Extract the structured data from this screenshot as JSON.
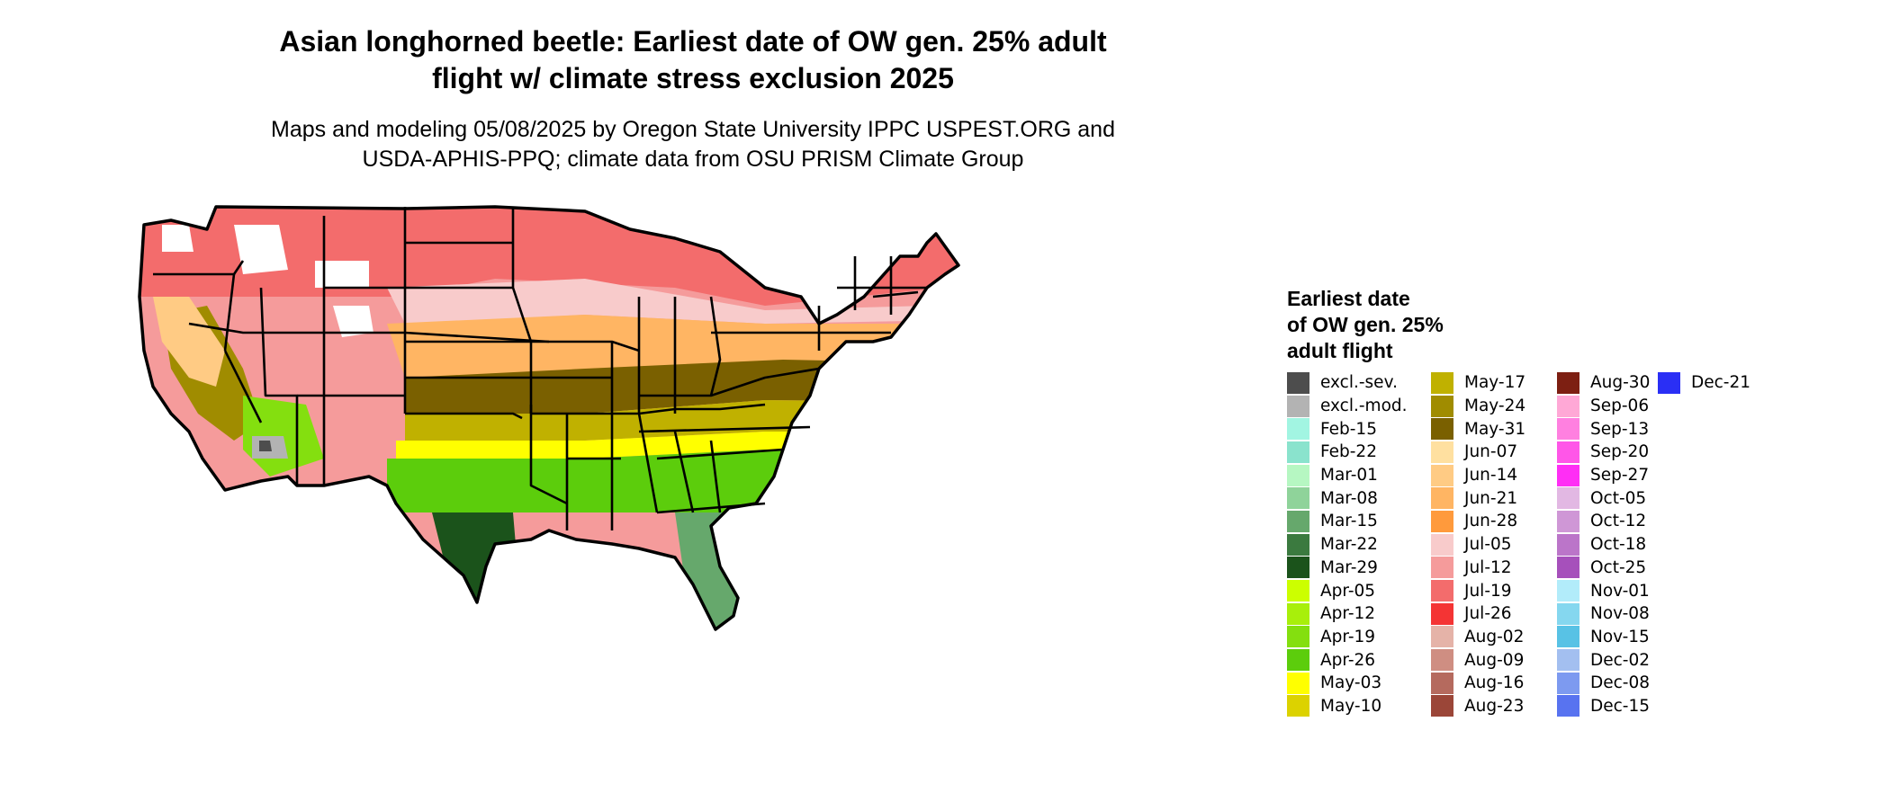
{
  "title": "Asian longhorned beetle: Earliest date of OW gen. 25% adult flight w/ climate stress exclusion 2025",
  "title_lines": [
    "Asian longhorned beetle: Earliest date of OW gen. 25% adult",
    "flight w/ climate stress exclusion 2025"
  ],
  "subtitle_lines": [
    "Maps and modeling 05/08/2025 by Oregon State University IPPC USPEST.ORG and",
    "USDA-APHIS-PPQ; climate data from OSU PRISM Climate Group"
  ],
  "legend": {
    "title_lines": [
      "Earliest date",
      "of OW gen. 25%",
      "adult flight"
    ],
    "columns": [
      [
        {
          "label": "excl.-sev.",
          "color": "#4d4d4d"
        },
        {
          "label": "excl.-mod.",
          "color": "#b3b3b3"
        },
        {
          "label": "Feb-15",
          "color": "#a2f5e2"
        },
        {
          "label": "Feb-22",
          "color": "#8ae3cd"
        },
        {
          "label": "Mar-01",
          "color": "#b6f7c2"
        },
        {
          "label": "Mar-08",
          "color": "#8fd39a"
        },
        {
          "label": "Mar-15",
          "color": "#66a86c"
        },
        {
          "label": "Mar-22",
          "color": "#3b7a3f"
        },
        {
          "label": "Mar-29",
          "color": "#1b531b"
        },
        {
          "label": "Apr-05",
          "color": "#ccff00"
        },
        {
          "label": "Apr-12",
          "color": "#a8ef0b"
        },
        {
          "label": "Apr-19",
          "color": "#84df0f"
        },
        {
          "label": "Apr-26",
          "color": "#5ccd0c"
        },
        {
          "label": "May-03",
          "color": "#ffff00"
        },
        {
          "label": "May-10",
          "color": "#dcd200"
        }
      ],
      [
        {
          "label": "May-17",
          "color": "#c0b100"
        },
        {
          "label": "May-24",
          "color": "#a08c00"
        },
        {
          "label": "May-31",
          "color": "#7a6000"
        },
        {
          "label": "Jun-07",
          "color": "#ffe0a0"
        },
        {
          "label": "Jun-14",
          "color": "#ffcb84"
        },
        {
          "label": "Jun-21",
          "color": "#ffb563"
        },
        {
          "label": "Jun-28",
          "color": "#ff9a3c"
        },
        {
          "label": "Jul-05",
          "color": "#f8cbcb"
        },
        {
          "label": "Jul-12",
          "color": "#f59b9b"
        },
        {
          "label": "Jul-19",
          "color": "#f36c6c"
        },
        {
          "label": "Jul-26",
          "color": "#f43434"
        },
        {
          "label": "Aug-02",
          "color": "#e5b3a8"
        },
        {
          "label": "Aug-09",
          "color": "#cf8e82"
        },
        {
          "label": "Aug-16",
          "color": "#b56a5e"
        },
        {
          "label": "Aug-23",
          "color": "#9b4638"
        }
      ],
      [
        {
          "label": "Aug-30",
          "color": "#7d1f12"
        },
        {
          "label": "Sep-06",
          "color": "#ffa8d6"
        },
        {
          "label": "Sep-13",
          "color": "#ff80e0"
        },
        {
          "label": "Sep-20",
          "color": "#ff56e8"
        },
        {
          "label": "Sep-27",
          "color": "#ff2ef5"
        },
        {
          "label": "Oct-05",
          "color": "#e2b8e3"
        },
        {
          "label": "Oct-12",
          "color": "#cf97d6"
        },
        {
          "label": "Oct-18",
          "color": "#bb75c9"
        },
        {
          "label": "Oct-25",
          "color": "#a650bb"
        },
        {
          "label": "Nov-01",
          "color": "#b2ecfa"
        },
        {
          "label": "Nov-08",
          "color": "#85d7ef"
        },
        {
          "label": "Nov-15",
          "color": "#58c2e5"
        },
        {
          "label": "Dec-02",
          "color": "#a3bff0"
        },
        {
          "label": "Dec-08",
          "color": "#7d9af0"
        },
        {
          "label": "Dec-15",
          "color": "#5873f0"
        }
      ],
      [
        {
          "label": "Dec-21",
          "color": "#2a2ff5"
        }
      ]
    ]
  },
  "map": {
    "colors": {
      "boundary": "#000000",
      "north_red": "#f36c6c",
      "north_pink": "#f59b9b",
      "light_pink": "#f8cbcb",
      "orange": "#ffb563",
      "light_orange": "#ffcb84",
      "olive": "#a08c00",
      "dark_olive": "#7a6000",
      "yellow_olive": "#c0b100",
      "yellow": "#ffff00",
      "green": "#5ccd0c",
      "light_green": "#84df0f",
      "dark_green": "#1b531b",
      "mid_green": "#66a86c",
      "aqua": "#a2f5e2",
      "grey_excl": "#b3b3b3",
      "dark_excl": "#4d4d4d",
      "mountain_brown": "#b56a5e"
    }
  }
}
